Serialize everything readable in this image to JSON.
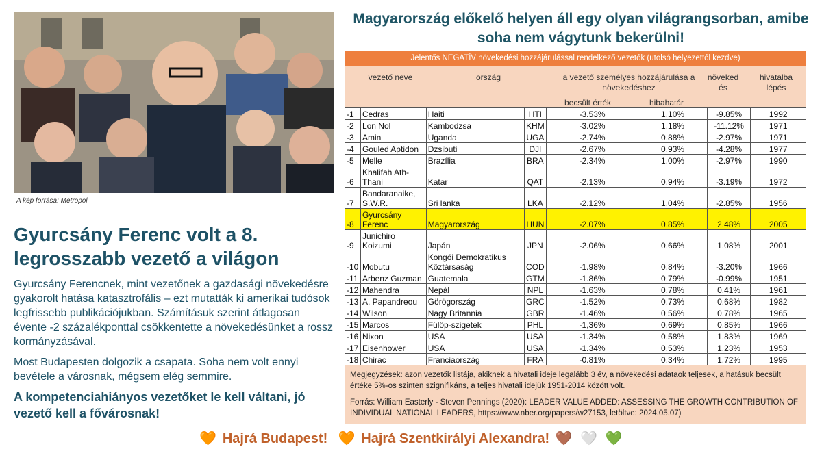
{
  "photo": {
    "credit": "A kép forrása: Metropol"
  },
  "headline": "Gyurcsány Ferenc volt a 8. legrosszabb vezető a világon",
  "body": {
    "p1": "Gyurcsány Ferencnek, mint vezetőnek a gazdasági növekedésre gyakorolt hatása katasztrofális – ezt mutatták ki amerikai tudósok legfrissebb publikációjukban. Számításuk szerint átlagosan évente -2 százalékponttal csökkentette a növekedésünket a rossz kormányzásával.",
    "p2": "Most Budapesten dolgozik a csapata. Soha nem volt ennyi bevétele a városnak, mégsem elég semmire.",
    "cta": "A kompetenciahiányos vezetőket le kell váltani, jó vezető kell a fővárosnak!"
  },
  "right_title": "Magyarország előkelő helyen áll egy olyan világrangsorban, amibe soha nem vágytunk bekerülni!",
  "table": {
    "banner": "Jelentős NEGATÍV növekedési hozzájárulással rendelkező vezetők (utolsó helyezettől kezdve)",
    "headers": {
      "name": "vezető neve",
      "country": "ország",
      "contribution": "a vezető személyes hozzájárulása a növekedéshez",
      "estimate": "becsült érték",
      "error": "hibahatár",
      "growth": "növeked és",
      "year": "hivatalba lépés"
    },
    "rows": [
      {
        "rank": "-1",
        "name": "Cedras",
        "country": "Haiti",
        "code": "HTI",
        "estimate": "-3.53%",
        "error": "1.10%",
        "growth": "-9.85%",
        "year": "1992"
      },
      {
        "rank": "-2",
        "name": "Lon Nol",
        "country": "Kambodzsa",
        "code": "KHM",
        "estimate": "-3.02%",
        "error": "1.18%",
        "growth": "-11.12%",
        "year": "1971"
      },
      {
        "rank": "-3",
        "name": "Amin",
        "country": "Uganda",
        "code": "UGA",
        "estimate": "-2.74%",
        "error": "0.88%",
        "growth": "-2.97%",
        "year": "1971"
      },
      {
        "rank": "-4",
        "name": "Gouled Aptidon",
        "country": "Dzsibuti",
        "code": "DJI",
        "estimate": "-2.67%",
        "error": "0.93%",
        "growth": "-4.28%",
        "year": "1977"
      },
      {
        "rank": "-5",
        "name": "Melle",
        "country": "Brazília",
        "code": "BRA",
        "estimate": "-2.34%",
        "error": "1.00%",
        "growth": "-2.97%",
        "year": "1990"
      },
      {
        "rank": "-6",
        "name": "Khalifah Ath-Thani",
        "country": "Katar",
        "code": "QAT",
        "estimate": "-2.13%",
        "error": "0.94%",
        "growth": "-3.19%",
        "year": "1972"
      },
      {
        "rank": "-7",
        "name": "Bandaranaike, S.W.R.",
        "country": "Sri lanka",
        "code": "LKA",
        "estimate": "-2.12%",
        "error": "1.04%",
        "growth": "-2.85%",
        "year": "1956"
      },
      {
        "rank": "-8",
        "name": "Gyurcsány Ferenc",
        "country": "Magyarország",
        "code": "HUN",
        "estimate": "-2.07%",
        "error": "0.85%",
        "growth": "2.48%",
        "year": "2005"
      },
      {
        "rank": "-9",
        "name": "Junichiro Koizumi",
        "country": "Japán",
        "code": "JPN",
        "estimate": "-2.06%",
        "error": "0.66%",
        "growth": "1.08%",
        "year": "2001"
      },
      {
        "rank": "-10",
        "name": "Mobutu",
        "country": "Kongói Demokratikus Köztársaság",
        "code": "COD",
        "estimate": "-1.98%",
        "error": "0.84%",
        "growth": "-3.20%",
        "year": "1966"
      },
      {
        "rank": "-11",
        "name": "Arbenz Guzman",
        "country": "Guatemala",
        "code": "GTM",
        "estimate": "-1.86%",
        "error": "0.79%",
        "growth": "-0.99%",
        "year": "1951"
      },
      {
        "rank": "-12",
        "name": "Mahendra",
        "country": "Nepál",
        "code": "NPL",
        "estimate": "-1.63%",
        "error": "0.78%",
        "growth": "0.41%",
        "year": "1961"
      },
      {
        "rank": "-13",
        "name": "A. Papandreou",
        "country": "Görögország",
        "code": "GRC",
        "estimate": "-1.52%",
        "error": "0.73%",
        "growth": "0.68%",
        "year": "1982"
      },
      {
        "rank": "-14",
        "name": "Wilson",
        "country": "Nagy Britannia",
        "code": "GBR",
        "estimate": "-1.46%",
        "error": "0.56%",
        "growth": "0.78%",
        "year": "1965"
      },
      {
        "rank": "-15",
        "name": "Marcos",
        "country": "Fülöp-szigetek",
        "code": "PHL",
        "estimate": "-1,36%",
        "error": "0.69%",
        "growth": "0,85%",
        "year": "1966"
      },
      {
        "rank": "-16",
        "name": "Nixon",
        "country": "USA",
        "code": "USA",
        "estimate": "-1.34%",
        "error": "0.58%",
        "growth": "1.83%",
        "year": "1969"
      },
      {
        "rank": "-17",
        "name": "Eisenhower",
        "country": "USA",
        "code": "USA",
        "estimate": "-1.34%",
        "error": "0.53%",
        "growth": "1.23%",
        "year": "1953"
      },
      {
        "rank": "-18",
        "name": "Chirac",
        "country": "Franciaország",
        "code": "FRA",
        "estimate": "-0.81%",
        "error": "0.34%",
        "growth": "1.72%",
        "year": "1995"
      }
    ],
    "highlight_color": "#fff200",
    "notes": "Megjegyzések: azon vezetők listája, akiknek a hivatali ideje legalább 3 év, a növekedési adataok teljesek, a hatásuk becsült értéke 5%-os szinten szignifikáns, a teljes hivatali idejük 1951-2014 között volt.",
    "source": "Forrás: William Easterly - Steven Pennings (2020): LEADER VALUE ADDED: ASSESSING THE GROWTH CONTRIBUTION OF INDIVIDUAL NATIONAL LEADERS, https://www.nber.org/papers/w27153, letöltve: 2024.05.07)"
  },
  "footer": {
    "slogan1": "Hajrá Budapest!",
    "slogan2": "Hajrá Szentkirályi Alexandra!",
    "heart_orange": "🧡",
    "heart_brown": "🤎",
    "heart_white": "🤍",
    "heart_green": "💚"
  },
  "colors": {
    "accent_orange": "#ee7f3e",
    "table_bg": "#f8d6bf",
    "heading_teal": "#1e5266",
    "footer_orange": "#c0612b"
  }
}
